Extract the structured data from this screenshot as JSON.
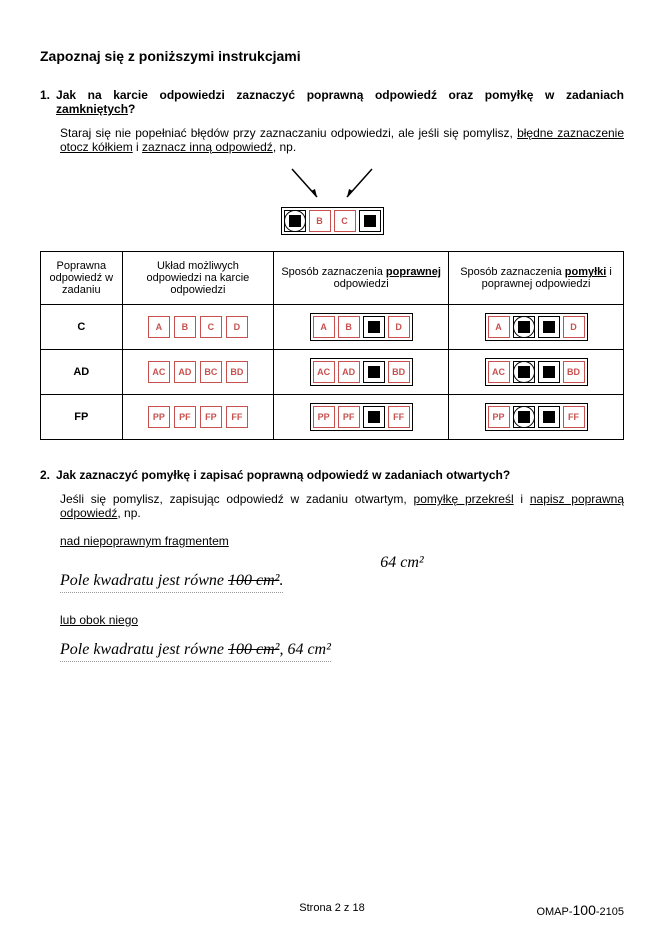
{
  "title": "Zapoznaj się z poniższymi instrukcjami",
  "q1": {
    "num": "1.",
    "text_a": "Jak na karcie odpowiedzi zaznaczyć poprawną odpowiedź oraz pomyłkę w zadaniach ",
    "text_b": "zamkniętych",
    "text_c": "?",
    "para_a": "Staraj się nie popełniać błędów przy zaznaczaniu odpowiedzi, ale jeśli się pomylisz, ",
    "para_b": "błędne zaznaczenie otocz kółkiem",
    "para_c": " i ",
    "para_d": "zaznacz inną odpowiedź",
    "para_e": ", np."
  },
  "diagram_labels": {
    "b": "B",
    "c": "C"
  },
  "table": {
    "h1": "Poprawna odpowiedź w zadaniu",
    "h2": "Układ możliwych odpowiedzi na karcie odpowiedzi",
    "h3a": "Sposób zaznaczenia ",
    "h3b": "poprawnej",
    "h3c": " odpowiedzi",
    "h4a": "Sposób zaznaczenia ",
    "h4b": "pomyłki",
    "h4c": " i poprawnej odpowiedzi",
    "rows": [
      {
        "label": "C",
        "opts": [
          "A",
          "B",
          "C",
          "D"
        ]
      },
      {
        "label": "AD",
        "opts": [
          "AC",
          "AD",
          "BC",
          "BD"
        ]
      },
      {
        "label": "FP",
        "opts": [
          "PP",
          "PF",
          "FP",
          "FF"
        ]
      }
    ]
  },
  "q2": {
    "num": "2.",
    "text": "Jak zaznaczyć pomyłkę i zapisać poprawną odpowiedź w zadaniach otwartych?",
    "para_a": "Jeśli się pomylisz, zapisując odpowiedź w zadaniu otwartym, ",
    "para_b": "pomyłkę przekreśl",
    "para_c": " i ",
    "para_d": "napisz poprawną odpowiedź",
    "para_e": ", np.",
    "sub1": "nad niepoprawnym fragmentem",
    "corr1": "64 cm²",
    "hand1a": "Pole kwadratu jest równe ",
    "hand1b": "100 cm²",
    "hand1c": ".",
    "sub2": "lub obok niego",
    "hand2a": "Pole kwadratu jest równe ",
    "hand2b": "100 cm²",
    "hand2c": ",  64 cm²"
  },
  "footer": {
    "center": "Strona 2 z 18",
    "code_a": "OMAP-",
    "code_b": "100",
    "code_c": "-2105"
  },
  "colors": {
    "box_outline": "#c8504f",
    "text": "#000000",
    "bg": "#ffffff"
  }
}
